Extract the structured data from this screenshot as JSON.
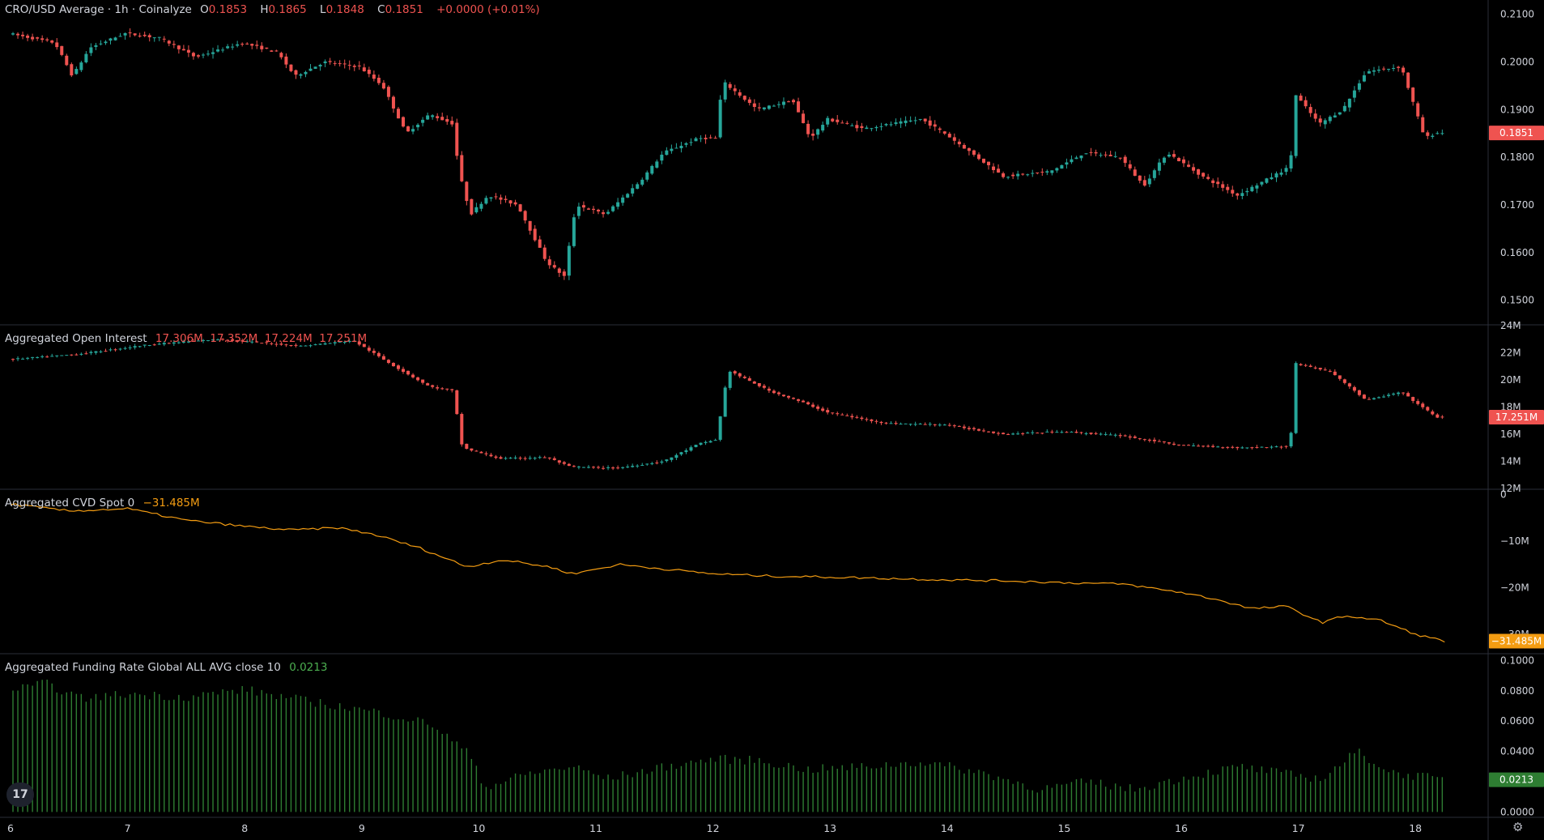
{
  "colors": {
    "up": "#26a69a",
    "down": "#ef5350",
    "cvd": "#f39c12",
    "funding": "#2e7d32",
    "grid": "#2a2e39",
    "text": "#d1d4dc"
  },
  "price_legend": {
    "title": "CRO/USD Average · 1h · Coinalyze",
    "o_label": "O",
    "o": "0.1853",
    "h_label": "H",
    "h": "0.1865",
    "l_label": "L",
    "l": "0.1848",
    "c_label": "C",
    "c": "0.1851",
    "change": "+0.0000 (+0.01%)"
  },
  "oi_legend": {
    "title": "Aggregated Open Interest",
    "values": "17.306M  17.352M  17.224M  17.251M"
  },
  "cvd_legend": {
    "title": "Aggregated CVD Spot 0",
    "value": "−31.485M"
  },
  "funding_legend": {
    "title": "Aggregated Funding Rate Global ALL AVG close 10",
    "value": "0.0213"
  },
  "logo_text": "17",
  "gear_icon": "gear-icon",
  "chart_data": [
    {
      "type": "candlestick",
      "title": "CRO/USD Average · 1h · Coinalyze",
      "ylim": [
        0.145,
        0.213
      ],
      "yticks": [
        "0.2100",
        "0.2000",
        "0.1900",
        "0.1800",
        "0.1700",
        "0.1600",
        "0.1500"
      ],
      "last_value": "0.1851",
      "x_dates": [
        6,
        7,
        8,
        9,
        10,
        11,
        12,
        13,
        14,
        15,
        16,
        17,
        18
      ],
      "path_points": [
        [
          6.0,
          0.206
        ],
        [
          6.4,
          0.204
        ],
        [
          6.55,
          0.197
        ],
        [
          6.7,
          0.203
        ],
        [
          7.0,
          0.206
        ],
        [
          7.3,
          0.205
        ],
        [
          7.6,
          0.201
        ],
        [
          8.0,
          0.204
        ],
        [
          8.3,
          0.202
        ],
        [
          8.45,
          0.197
        ],
        [
          8.7,
          0.2
        ],
        [
          9.0,
          0.199
        ],
        [
          9.2,
          0.195
        ],
        [
          9.4,
          0.185
        ],
        [
          9.6,
          0.189
        ],
        [
          9.8,
          0.187
        ],
        [
          9.85,
          0.177
        ],
        [
          9.95,
          0.168
        ],
        [
          10.1,
          0.172
        ],
        [
          10.35,
          0.17
        ],
        [
          10.6,
          0.158
        ],
        [
          10.75,
          0.155
        ],
        [
          10.85,
          0.17
        ],
        [
          11.1,
          0.168
        ],
        [
          11.4,
          0.175
        ],
        [
          11.6,
          0.181
        ],
        [
          11.9,
          0.184
        ],
        [
          12.05,
          0.184
        ],
        [
          12.1,
          0.196
        ],
        [
          12.4,
          0.19
        ],
        [
          12.7,
          0.192
        ],
        [
          12.85,
          0.184
        ],
        [
          13.0,
          0.188
        ],
        [
          13.3,
          0.186
        ],
        [
          13.8,
          0.188
        ],
        [
          14.0,
          0.185
        ],
        [
          14.5,
          0.176
        ],
        [
          14.9,
          0.177
        ],
        [
          15.2,
          0.181
        ],
        [
          15.5,
          0.18
        ],
        [
          15.7,
          0.174
        ],
        [
          15.9,
          0.181
        ],
        [
          16.2,
          0.176
        ],
        [
          16.5,
          0.172
        ],
        [
          16.8,
          0.176
        ],
        [
          16.95,
          0.178
        ],
        [
          17.0,
          0.193
        ],
        [
          17.2,
          0.187
        ],
        [
          17.4,
          0.19
        ],
        [
          17.6,
          0.198
        ],
        [
          17.9,
          0.199
        ],
        [
          18.1,
          0.184
        ],
        [
          18.2,
          0.1851
        ]
      ]
    },
    {
      "type": "candlestick",
      "title": "Aggregated Open Interest",
      "ylim": [
        12,
        24
      ],
      "yticks": [
        "24M",
        "22M",
        "20M",
        "18M",
        "16M",
        "14M",
        "12M"
      ],
      "last_value": "17.251M",
      "path_points": [
        [
          6.0,
          21.5
        ],
        [
          6.6,
          21.9
        ],
        [
          7.2,
          22.6
        ],
        [
          7.8,
          23.0
        ],
        [
          8.5,
          22.5
        ],
        [
          8.95,
          22.9
        ],
        [
          9.3,
          21.0
        ],
        [
          9.6,
          19.5
        ],
        [
          9.8,
          19.2
        ],
        [
          9.88,
          15.0
        ],
        [
          10.2,
          14.2
        ],
        [
          10.6,
          14.3
        ],
        [
          10.8,
          13.6
        ],
        [
          11.2,
          13.5
        ],
        [
          11.6,
          14.0
        ],
        [
          11.9,
          15.3
        ],
        [
          12.05,
          15.6
        ],
        [
          12.15,
          20.7
        ],
        [
          12.5,
          19.2
        ],
        [
          12.8,
          18.3
        ],
        [
          13.0,
          17.6
        ],
        [
          13.5,
          16.8
        ],
        [
          14.0,
          16.7
        ],
        [
          14.5,
          16.0
        ],
        [
          15.0,
          16.2
        ],
        [
          15.5,
          15.9
        ],
        [
          16.0,
          15.2
        ],
        [
          16.5,
          15.0
        ],
        [
          16.95,
          15.1
        ],
        [
          17.0,
          21.2
        ],
        [
          17.3,
          20.6
        ],
        [
          17.6,
          18.5
        ],
        [
          17.9,
          19.1
        ],
        [
          18.2,
          17.251
        ]
      ]
    },
    {
      "type": "line",
      "title": "Aggregated CVD Spot 0",
      "ylim": [
        -34,
        1
      ],
      "yticks": [
        "0",
        "−10M",
        "−20M",
        "−30M"
      ],
      "last_value": "−31.485M",
      "path_points": [
        [
          6.0,
          -2.0
        ],
        [
          6.5,
          -3.5
        ],
        [
          7.0,
          -3.0
        ],
        [
          7.5,
          -5.5
        ],
        [
          8.0,
          -6.8
        ],
        [
          8.4,
          -7.6
        ],
        [
          8.8,
          -7.1
        ],
        [
          9.1,
          -8.5
        ],
        [
          9.5,
          -11.5
        ],
        [
          9.8,
          -14.5
        ],
        [
          9.9,
          -15.5
        ],
        [
          10.2,
          -14.0
        ],
        [
          10.6,
          -15.5
        ],
        [
          10.8,
          -17.0
        ],
        [
          11.2,
          -15.0
        ],
        [
          11.6,
          -16.0
        ],
        [
          12.0,
          -17.0
        ],
        [
          12.5,
          -17.5
        ],
        [
          13.0,
          -17.7
        ],
        [
          13.5,
          -18.0
        ],
        [
          14.0,
          -18.3
        ],
        [
          14.5,
          -18.5
        ],
        [
          15.0,
          -18.9
        ],
        [
          15.5,
          -19.2
        ],
        [
          16.0,
          -21.0
        ],
        [
          16.3,
          -22.5
        ],
        [
          16.6,
          -24.5
        ],
        [
          16.9,
          -24.0
        ],
        [
          17.2,
          -27.5
        ],
        [
          17.4,
          -26.0
        ],
        [
          17.7,
          -27.0
        ],
        [
          18.0,
          -30.0
        ],
        [
          18.25,
          -31.485
        ]
      ]
    },
    {
      "type": "bar",
      "title": "Aggregated Funding Rate Global ALL AVG close 10",
      "ylim": [
        -0.003,
        0.104
      ],
      "yticks": [
        "0.1000",
        "0.0800",
        "0.0600",
        "0.0400",
        "0.0200",
        "0.0000"
      ],
      "last_value": "0.0213",
      "path_points": [
        [
          6.0,
          0.08
        ],
        [
          6.3,
          0.085
        ],
        [
          6.6,
          0.075
        ],
        [
          7.0,
          0.078
        ],
        [
          7.5,
          0.076
        ],
        [
          8.0,
          0.081
        ],
        [
          8.4,
          0.075
        ],
        [
          8.8,
          0.07
        ],
        [
          9.2,
          0.065
        ],
        [
          9.6,
          0.058
        ],
        [
          9.95,
          0.036
        ],
        [
          10.05,
          0.016
        ],
        [
          10.4,
          0.025
        ],
        [
          10.8,
          0.03
        ],
        [
          11.1,
          0.022
        ],
        [
          11.6,
          0.03
        ],
        [
          12.0,
          0.035
        ],
        [
          12.4,
          0.034
        ],
        [
          12.8,
          0.028
        ],
        [
          13.3,
          0.03
        ],
        [
          13.8,
          0.033
        ],
        [
          14.3,
          0.026
        ],
        [
          14.8,
          0.015
        ],
        [
          15.2,
          0.02
        ],
        [
          15.6,
          0.015
        ],
        [
          16.1,
          0.024
        ],
        [
          16.5,
          0.03
        ],
        [
          16.9,
          0.025
        ],
        [
          17.2,
          0.022
        ],
        [
          17.5,
          0.04
        ],
        [
          17.8,
          0.026
        ],
        [
          18.25,
          0.0213
        ]
      ]
    }
  ]
}
